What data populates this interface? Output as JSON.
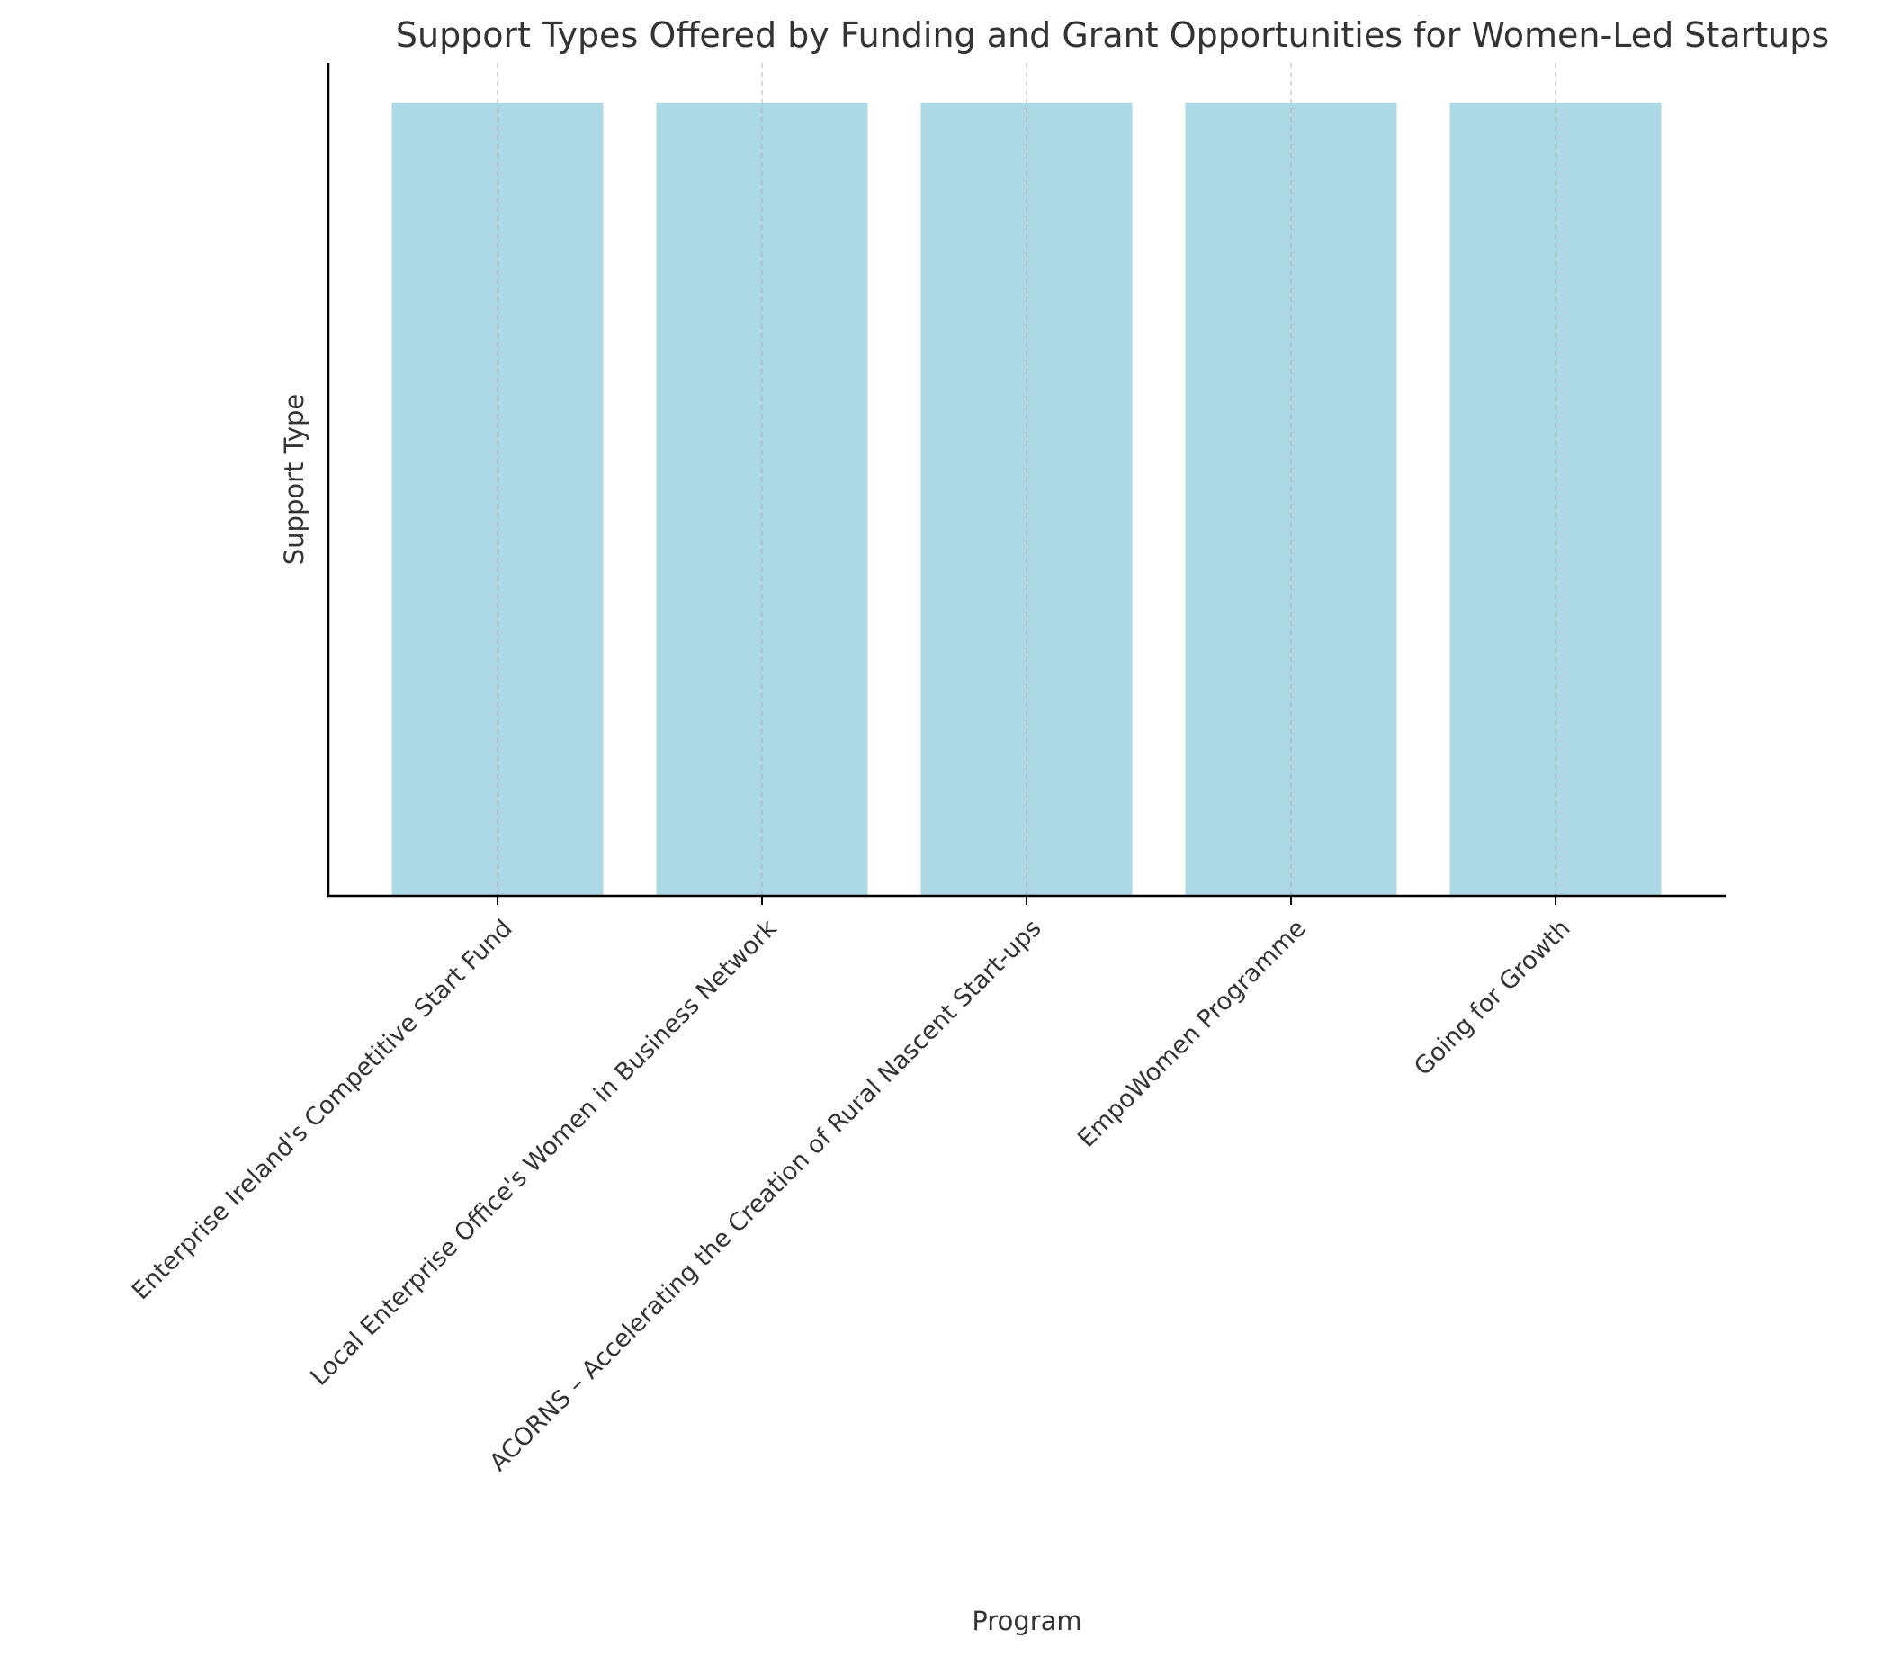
{
  "chart_data": {
    "type": "bar",
    "title": "Support Types Offered by Funding and Grant Opportunities for Women-Led Startups",
    "xlabel": "Program",
    "ylabel": "Support Type",
    "categories": [
      "Enterprise Ireland's Competitive Start Fund",
      "Local Enterprise Office's Women in Business Network",
      "ACORNS – Accelerating the Creation of Rural Nascent Start-ups",
      "EmpoWomen Programme",
      "Going for Growth"
    ],
    "values": [
      1,
      1,
      1,
      1,
      1
    ],
    "ylim": [
      0,
      1.05
    ],
    "grid": "vertical dashed",
    "bar_color": "#add8e6",
    "text_color": "#333333",
    "axis_color": "#000000",
    "grid_color": "#b0b0b0"
  }
}
